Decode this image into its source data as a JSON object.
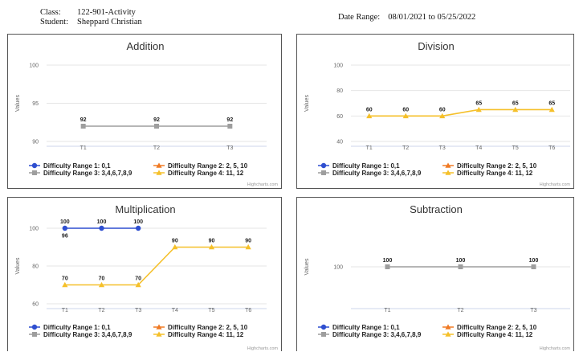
{
  "header": {
    "class_label": "Class:",
    "class_value": "122-901-Activity",
    "student_label": "Student:",
    "student_value": "Sheppard Christian",
    "date_range_label": "Date Range:",
    "date_range_value": "08/01/2021 to 05/25/2022"
  },
  "colors": {
    "range1": "#2f4fd0",
    "range2": "#f07a24",
    "range3": "#9e9e9e",
    "range4": "#f5c02a"
  },
  "legend": [
    "Difficulty Range 1: 0,1",
    "Difficulty Range 2: 2, 5, 10",
    "Difficulty Range 3: 3,4,6,7,8,9",
    "Difficulty Range 4: 11, 12"
  ],
  "credit": "Highcharts.com",
  "chart_data": [
    {
      "type": "line",
      "title": "Addition",
      "ylabel": "Values",
      "categories": [
        "T1",
        "T2",
        "T3"
      ],
      "y_ticks": [
        90,
        95,
        100
      ],
      "ylim": [
        90,
        100
      ],
      "series": [
        {
          "name": "Difficulty Range 3: 3,4,6,7,8,9",
          "color_key": "range3",
          "marker": "square",
          "values": [
            92,
            92,
            92
          ],
          "labels": [
            "92",
            "92",
            "92"
          ]
        }
      ]
    },
    {
      "type": "line",
      "title": "Division",
      "ylabel": "Values",
      "categories": [
        "T1",
        "T2",
        "T3",
        "T4",
        "T5",
        "T6"
      ],
      "y_ticks": [
        40,
        60,
        80,
        100
      ],
      "ylim": [
        40,
        100
      ],
      "series": [
        {
          "name": "Difficulty Range 4: 11, 12",
          "color_key": "range4",
          "marker": "triangle",
          "values": [
            60,
            60,
            60,
            65,
            65,
            65
          ],
          "labels": [
            "60",
            "60",
            "60",
            "65",
            "65",
            "65"
          ]
        }
      ]
    },
    {
      "type": "line",
      "title": "Multiplication",
      "ylabel": "Values",
      "categories": [
        "T1",
        "T2",
        "T3",
        "T4",
        "T5",
        "T6"
      ],
      "y_ticks": [
        60,
        80,
        100
      ],
      "ylim": [
        60,
        100
      ],
      "series": [
        {
          "name": "Difficulty Range 1: 0,1",
          "color_key": "range1",
          "marker": "circle",
          "values": [
            100,
            100,
            100,
            null,
            null,
            null
          ],
          "labels": [
            "100",
            "100",
            "100",
            null,
            null,
            null
          ]
        },
        {
          "name": "Difficulty Range 4: 11, 12",
          "color_key": "range4",
          "marker": "triangle",
          "values": [
            70,
            70,
            70,
            90,
            90,
            90
          ],
          "labels": [
            "70",
            "70",
            "70",
            "90",
            "90",
            "90"
          ]
        }
      ],
      "extra_labels": [
        {
          "category": "T1",
          "value": 96,
          "text": "96"
        }
      ]
    },
    {
      "type": "line",
      "title": "Subtraction",
      "ylabel": "Values",
      "categories": [
        "T1",
        "T2",
        "T3"
      ],
      "y_ticks": [
        100
      ],
      "ylim": [
        98,
        102
      ],
      "series": [
        {
          "name": "Difficulty Range 3: 3,4,6,7,8,9",
          "color_key": "range3",
          "marker": "square",
          "values": [
            100,
            100,
            100
          ],
          "labels": [
            "100",
            "100",
            "100"
          ]
        }
      ]
    }
  ]
}
